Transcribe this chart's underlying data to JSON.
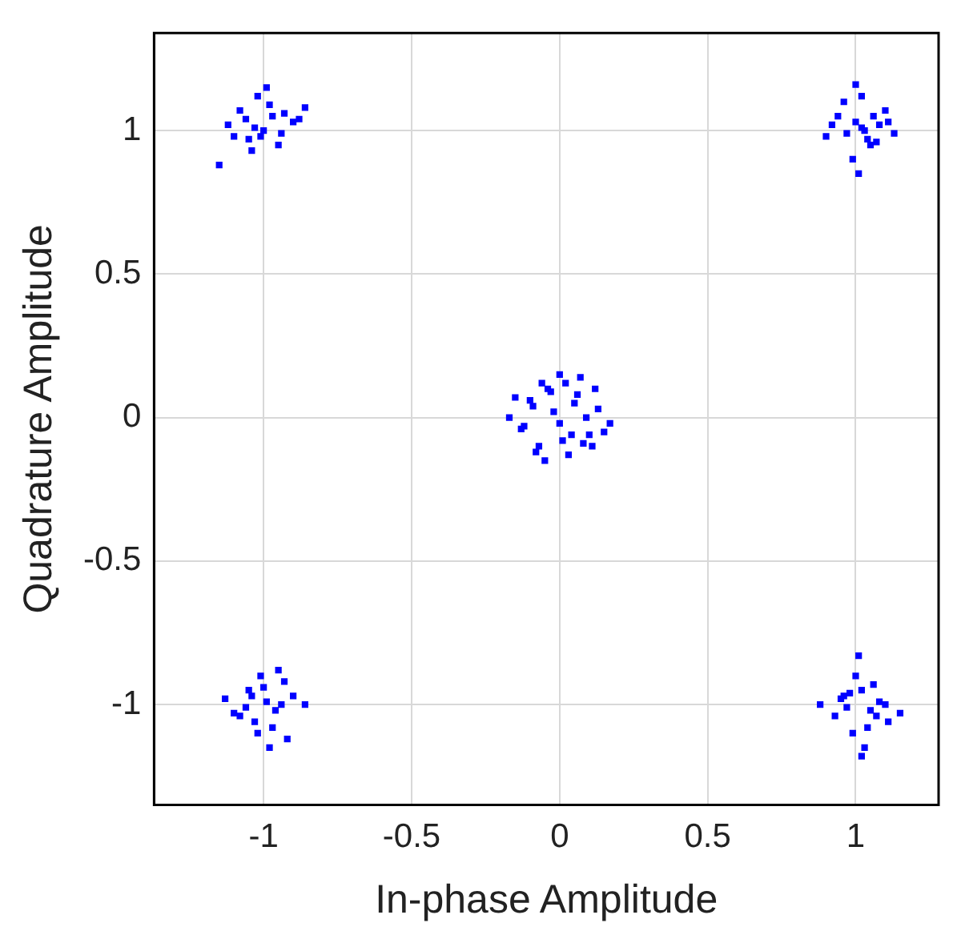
{
  "chart_data": {
    "type": "scatter",
    "xlabel": "In-phase Amplitude",
    "ylabel": "Quadrature Amplitude",
    "xlim": [
      -1.37,
      1.28
    ],
    "ylim": [
      -1.35,
      1.34
    ],
    "xticks": [
      -1,
      -0.5,
      0,
      0.5,
      1
    ],
    "yticks": [
      -1,
      -0.5,
      0,
      0.5,
      1
    ],
    "grid": true,
    "marker": "square",
    "legend": false,
    "series": [
      {
        "color": "#0000ff",
        "x": [
          -1.12,
          -1.08,
          -1.05,
          -1.02,
          -1.0,
          -0.97,
          -0.94,
          -0.9,
          -0.86,
          -1.04,
          -0.99,
          -0.95,
          -1.06,
          -1.01,
          -0.98,
          -1.1,
          -0.93,
          -1.03,
          -0.88,
          -1.15,
          0.9,
          0.94,
          0.97,
          1.0,
          1.02,
          1.05,
          1.08,
          1.1,
          1.13,
          0.99,
          1.03,
          1.06,
          0.96,
          1.01,
          1.04,
          0.92,
          1.07,
          1.0,
          1.02,
          1.11,
          -0.17,
          -0.13,
          -0.1,
          -0.07,
          -0.04,
          0.0,
          0.03,
          0.06,
          0.1,
          0.13,
          0.17,
          -0.05,
          0.02,
          0.08,
          -0.09,
          0.04,
          -0.02,
          0.12,
          -0.12,
          0.0,
          0.05,
          -0.06,
          0.09,
          -0.15,
          0.15,
          -0.08,
          0.07,
          0.01,
          -0.03,
          0.11,
          -1.13,
          -1.08,
          -1.05,
          -1.02,
          -0.99,
          -0.96,
          -0.93,
          -0.9,
          -0.86,
          -1.03,
          -0.98,
          -0.95,
          -1.06,
          -1.0,
          -0.97,
          -1.1,
          -0.94,
          -1.01,
          -0.92,
          -1.04,
          0.88,
          0.93,
          0.96,
          0.99,
          1.02,
          1.05,
          1.08,
          1.11,
          1.15,
          1.0,
          1.03,
          1.06,
          0.97,
          1.01,
          1.04,
          0.95,
          1.07,
          1.02,
          0.98,
          1.1
        ],
        "values": [
          1.02,
          1.07,
          0.97,
          1.12,
          1.0,
          1.05,
          0.99,
          1.03,
          1.08,
          0.93,
          1.15,
          0.95,
          1.04,
          0.98,
          1.09,
          0.98,
          1.06,
          1.01,
          1.04,
          0.88,
          0.98,
          1.05,
          0.99,
          1.03,
          1.12,
          0.95,
          1.02,
          1.07,
          0.99,
          0.9,
          1.0,
          1.05,
          1.1,
          0.85,
          0.97,
          1.02,
          0.96,
          1.16,
          1.01,
          1.03,
          0.0,
          -0.04,
          0.06,
          -0.1,
          0.1,
          0.15,
          -0.13,
          0.08,
          -0.06,
          0.03,
          -0.02,
          -0.15,
          0.12,
          -0.09,
          0.04,
          -0.06,
          0.02,
          0.1,
          -0.03,
          -0.02,
          0.05,
          0.12,
          0.0,
          0.07,
          -0.05,
          -0.12,
          0.14,
          -0.08,
          0.09,
          -0.1,
          -0.98,
          -1.04,
          -0.95,
          -1.1,
          -0.99,
          -1.02,
          -0.92,
          -0.97,
          -1.0,
          -1.06,
          -1.15,
          -0.88,
          -1.01,
          -0.94,
          -1.08,
          -1.03,
          -1.0,
          -0.9,
          -1.12,
          -0.97,
          -1.0,
          -1.04,
          -0.97,
          -1.1,
          -0.95,
          -1.02,
          -0.99,
          -1.06,
          -1.03,
          -0.9,
          -1.15,
          -0.93,
          -1.01,
          -0.83,
          -1.08,
          -0.98,
          -1.04,
          -1.18,
          -0.96,
          -1.0
        ]
      }
    ]
  }
}
